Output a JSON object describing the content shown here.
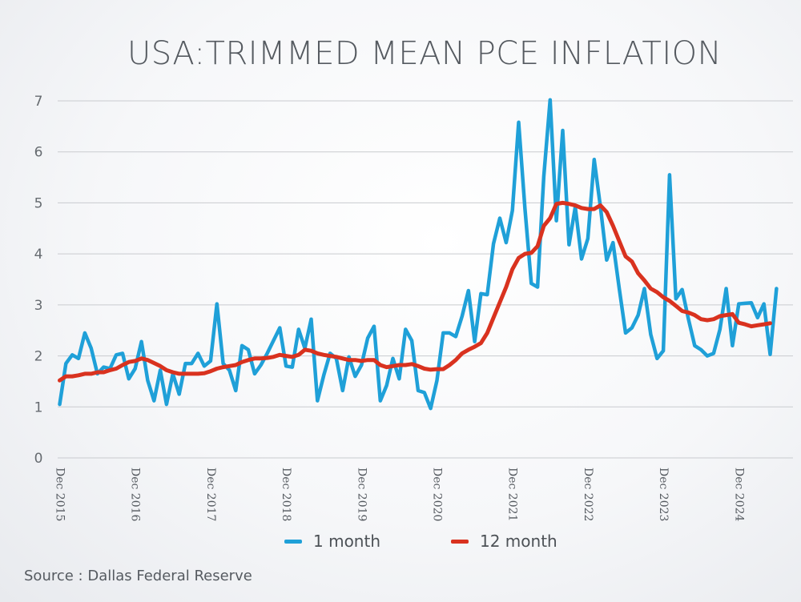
{
  "chart_data": {
    "type": "line",
    "title": "USA:TRIMMED MEAN PCE INFLATION",
    "xlabel": "",
    "ylabel": "",
    "ylim": [
      0,
      7
    ],
    "yticks": [
      0,
      1,
      2,
      3,
      4,
      5,
      6,
      7
    ],
    "xtick_labels": [
      "Dec 2015",
      "Dec 2016",
      "Dec 2017",
      "Dec 2018",
      "Dec 2019",
      "Dec 2020",
      "Dec 2021",
      "Dec 2022",
      "Dec 2023",
      "Dec 2024"
    ],
    "x_start": "Dec 2015",
    "x_frequency": "monthly",
    "series": [
      {
        "name": "1 month",
        "color": "#1fa0d8",
        "values": [
          1.05,
          1.85,
          2.02,
          1.95,
          2.45,
          2.15,
          1.65,
          1.78,
          1.75,
          2.02,
          2.05,
          1.55,
          1.75,
          2.28,
          1.52,
          1.12,
          1.72,
          1.05,
          1.65,
          1.25,
          1.85,
          1.85,
          2.05,
          1.8,
          1.9,
          3.02,
          1.85,
          1.72,
          1.32,
          2.2,
          2.12,
          1.65,
          1.82,
          2.05,
          2.3,
          2.55,
          1.8,
          1.78,
          2.52,
          2.15,
          2.72,
          1.12,
          1.62,
          2.05,
          1.95,
          1.32,
          1.98,
          1.6,
          1.82,
          2.35,
          2.58,
          1.12,
          1.42,
          1.95,
          1.55,
          2.52,
          2.3,
          1.32,
          1.28,
          0.97,
          1.52,
          2.45,
          2.45,
          2.38,
          2.78,
          3.28,
          2.28,
          3.22,
          3.2,
          4.2,
          4.7,
          4.22,
          4.85,
          6.58,
          4.88,
          3.42,
          3.35,
          5.52,
          7.02,
          4.65,
          6.42,
          4.18,
          4.92,
          3.9,
          4.3,
          5.85,
          4.92,
          3.88,
          4.22,
          3.32,
          2.45,
          2.55,
          2.8,
          3.32,
          2.42,
          1.95,
          2.1,
          5.55,
          3.12,
          3.3,
          2.72,
          2.2,
          2.12,
          2.0,
          2.05,
          2.52,
          3.32,
          2.2,
          3.02,
          3.03,
          3.04,
          2.75,
          3.02,
          2.03,
          3.32
        ]
      },
      {
        "name": "12 month",
        "color": "#d9321f",
        "values": [
          1.52,
          1.6,
          1.6,
          1.62,
          1.65,
          1.65,
          1.68,
          1.68,
          1.72,
          1.75,
          1.82,
          1.88,
          1.9,
          1.95,
          1.92,
          1.86,
          1.8,
          1.72,
          1.68,
          1.65,
          1.65,
          1.65,
          1.65,
          1.66,
          1.7,
          1.75,
          1.78,
          1.8,
          1.82,
          1.88,
          1.92,
          1.95,
          1.95,
          1.96,
          1.98,
          2.02,
          2.0,
          1.98,
          2.02,
          2.12,
          2.1,
          2.05,
          2.02,
          2.0,
          1.98,
          1.95,
          1.92,
          1.92,
          1.9,
          1.92,
          1.92,
          1.82,
          1.78,
          1.8,
          1.82,
          1.82,
          1.84,
          1.8,
          1.75,
          1.73,
          1.74,
          1.74,
          1.82,
          1.92,
          2.05,
          2.12,
          2.18,
          2.25,
          2.45,
          2.75,
          3.05,
          3.35,
          3.7,
          3.92,
          4.0,
          4.02,
          4.15,
          4.55,
          4.7,
          4.98,
          5.0,
          4.98,
          4.95,
          4.9,
          4.88,
          4.88,
          4.95,
          4.82,
          4.55,
          4.25,
          3.95,
          3.85,
          3.62,
          3.48,
          3.32,
          3.25,
          3.15,
          3.08,
          2.98,
          2.88,
          2.85,
          2.8,
          2.72,
          2.7,
          2.72,
          2.78,
          2.8,
          2.82,
          2.65,
          2.62,
          2.58,
          2.6,
          2.62,
          2.64
        ]
      }
    ],
    "legend": [
      "1 month",
      "12 month"
    ],
    "legend_position": "bottom",
    "grid": true
  },
  "source": "Source : Dallas Federal Reserve"
}
